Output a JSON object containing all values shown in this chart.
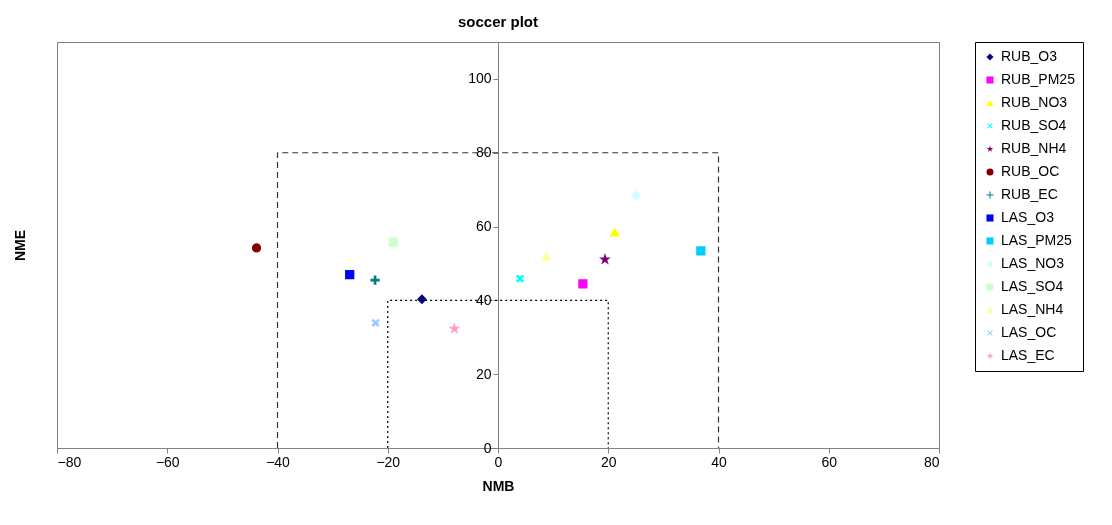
{
  "chart_data": {
    "type": "scatter",
    "title": "soccer plot",
    "xlabel": "NMB",
    "ylabel": "NME",
    "xlim": [
      -80,
      80
    ],
    "xticks": [
      -80,
      -60,
      -40,
      -20,
      0,
      20,
      40,
      60,
      80
    ],
    "ylim": [
      0,
      110
    ],
    "yticks": [
      0,
      20,
      40,
      60,
      80,
      100
    ],
    "grid": false,
    "legend": "right",
    "series": [
      {
        "name": "RUB_O3",
        "color": "#000080",
        "marker": "diamond",
        "x": [
          -13.8
        ],
        "values": [
          40.3
        ]
      },
      {
        "name": "RUB_PM25",
        "color": "#ff00ff",
        "marker": "square",
        "x": [
          15.4
        ],
        "values": [
          44.5
        ]
      },
      {
        "name": "RUB_NO3",
        "color": "#ffff00",
        "marker": "triangle",
        "x": [
          21.2
        ],
        "values": [
          58.4
        ]
      },
      {
        "name": "RUB_SO4",
        "color": "#00ffff",
        "marker": "x",
        "x": [
          4.0
        ],
        "values": [
          45.9
        ]
      },
      {
        "name": "RUB_NH4",
        "color": "#800080",
        "marker": "star",
        "x": [
          19.4
        ],
        "values": [
          51.1
        ]
      },
      {
        "name": "RUB_OC",
        "color": "#800000",
        "marker": "circle",
        "x": [
          -43.8
        ],
        "values": [
          54.2
        ]
      },
      {
        "name": "RUB_EC",
        "color": "#008080",
        "marker": "cross",
        "x": [
          -22.3
        ],
        "values": [
          45.5
        ]
      },
      {
        "name": "LAS_O3",
        "color": "#0000ff",
        "marker": "square",
        "x": [
          -26.9
        ],
        "values": [
          47.0
        ]
      },
      {
        "name": "LAS_PM25",
        "color": "#00ccff",
        "marker": "square",
        "x": [
          36.8
        ],
        "values": [
          53.4
        ]
      },
      {
        "name": "LAS_NO3",
        "color": "#ccffff",
        "marker": "diamond",
        "x": [
          25.0
        ],
        "values": [
          68.4
        ]
      },
      {
        "name": "LAS_SO4",
        "color": "#ccffcc",
        "marker": "square",
        "x": [
          -19.0
        ],
        "values": [
          55.8
        ]
      },
      {
        "name": "LAS_NH4",
        "color": "#ffff99",
        "marker": "triangle",
        "x": [
          8.8
        ],
        "values": [
          51.9
        ]
      },
      {
        "name": "LAS_OC",
        "color": "#99ccff",
        "marker": "x",
        "x": [
          -22.2
        ],
        "values": [
          33.9
        ]
      },
      {
        "name": "LAS_EC",
        "color": "#ff99cc",
        "marker": "star",
        "x": [
          -7.9
        ],
        "values": [
          32.3
        ]
      },
      {
        "type": "line",
        "color": "#333333",
        "line_style": "dashed",
        "x": [
          -40,
          -40,
          40,
          40
        ],
        "values": [
          0,
          80,
          80,
          0
        ]
      },
      {
        "type": "line",
        "color": "#000000",
        "line_style": "dotted",
        "x": [
          -20,
          -20,
          20,
          20
        ],
        "values": [
          0,
          40,
          40,
          0
        ]
      }
    ]
  }
}
